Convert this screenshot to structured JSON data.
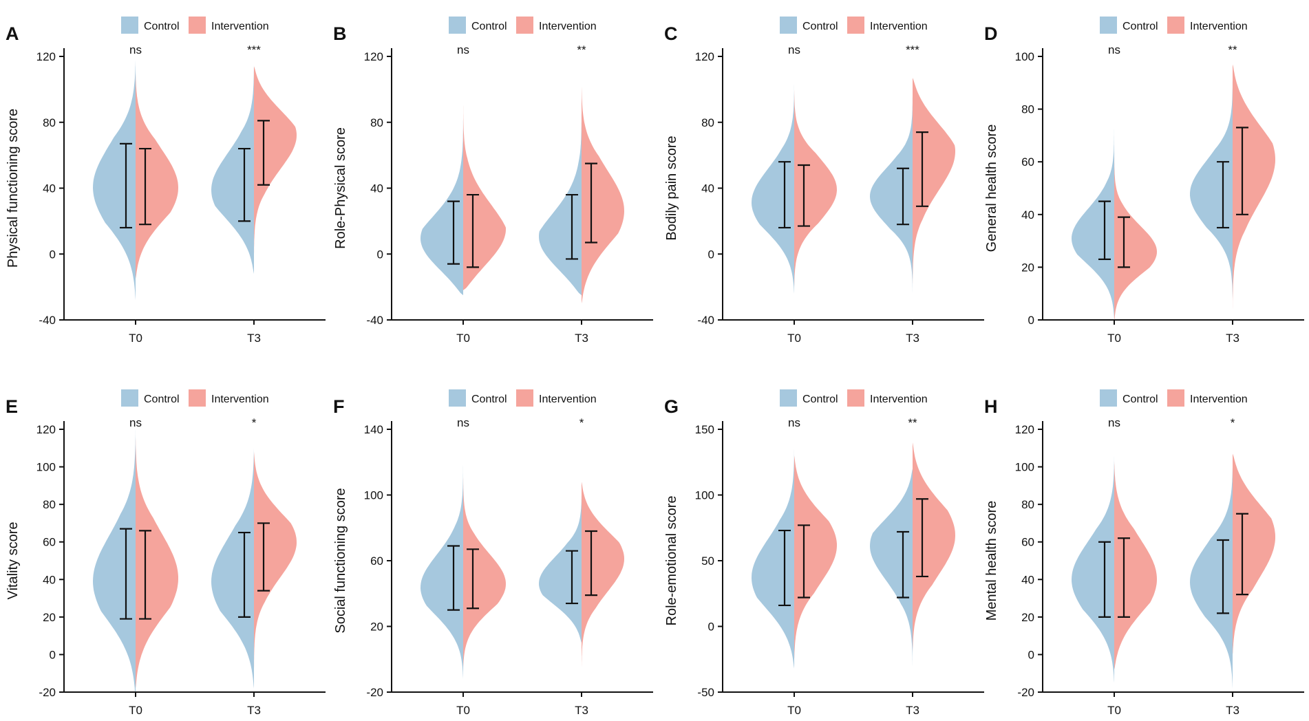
{
  "legend": [
    "Control",
    "Intervention"
  ],
  "colors": {
    "control": "#a6c8de",
    "intervention": "#f5a49c",
    "axis": "#111111",
    "errorbar": "#111111"
  },
  "chart_data": [
    {
      "panel": "A",
      "type": "violin",
      "ylabel": "Physical functioning score",
      "categories": [
        "T0",
        "T3"
      ],
      "ylim": [
        -40,
        120
      ],
      "yticks": [
        -40,
        0,
        40,
        80,
        120
      ],
      "significance": [
        "ns",
        "***"
      ],
      "series": [
        {
          "name": "Control",
          "groups": [
            {
              "min": -28,
              "max": 118,
              "peak": 40,
              "mean": 42,
              "sd_low": 16,
              "sd_high": 67
            },
            {
              "min": -12,
              "max": 116,
              "peak": 38,
              "mean": 42,
              "sd_low": 20,
              "sd_high": 64
            }
          ]
        },
        {
          "name": "Intervention",
          "groups": [
            {
              "min": -15,
              "max": 110,
              "peak": 40,
              "mean": 41,
              "sd_low": 18,
              "sd_high": 64
            },
            {
              "min": 0,
              "max": 114,
              "peak": 75,
              "mean": 61,
              "sd_low": 42,
              "sd_high": 81
            }
          ]
        }
      ]
    },
    {
      "panel": "B",
      "type": "violin",
      "ylabel": "Role-Physical score",
      "categories": [
        "T0",
        "T3"
      ],
      "ylim": [
        -40,
        120
      ],
      "yticks": [
        -40,
        0,
        40,
        80,
        120
      ],
      "significance": [
        "ns",
        "**"
      ],
      "series": [
        {
          "name": "Control",
          "groups": [
            {
              "min": -25,
              "max": 100,
              "peak": 0,
              "mean": 12,
              "sd_low": -6,
              "sd_high": 32
            },
            {
              "min": -25,
              "max": 95,
              "peak": 0,
              "mean": 16,
              "sd_low": -3,
              "sd_high": 36
            }
          ]
        },
        {
          "name": "Intervention",
          "groups": [
            {
              "min": -22,
              "max": 96,
              "peak": 5,
              "mean": 14,
              "sd_low": -8,
              "sd_high": 36
            },
            {
              "min": -30,
              "max": 102,
              "peak": 25,
              "mean": 30,
              "sd_low": 7,
              "sd_high": 55
            }
          ]
        }
      ]
    },
    {
      "panel": "C",
      "type": "violin",
      "ylabel": "Bodily pain score",
      "categories": [
        "T0",
        "T3"
      ],
      "ylim": [
        -40,
        120
      ],
      "yticks": [
        -40,
        0,
        40,
        80,
        120
      ],
      "significance": [
        "ns",
        "***"
      ],
      "series": [
        {
          "name": "Control",
          "groups": [
            {
              "min": -24,
              "max": 106,
              "peak": 30,
              "mean": 36,
              "sd_low": 16,
              "sd_high": 56
            },
            {
              "min": -25,
              "max": 100,
              "peak": 35,
              "mean": 35,
              "sd_low": 18,
              "sd_high": 52
            }
          ]
        },
        {
          "name": "Intervention",
          "groups": [
            {
              "min": -20,
              "max": 100,
              "peak": 40,
              "mean": 36,
              "sd_low": 17,
              "sd_high": 54
            },
            {
              "min": -20,
              "max": 107,
              "peak": 65,
              "mean": 52,
              "sd_low": 29,
              "sd_high": 74
            }
          ]
        }
      ]
    },
    {
      "panel": "D",
      "type": "violin",
      "ylabel": "General health score",
      "categories": [
        "T0",
        "T3"
      ],
      "ylim": [
        0,
        100
      ],
      "yticks": [
        0,
        20,
        40,
        60,
        80,
        100
      ],
      "significance": [
        "ns",
        "**"
      ],
      "series": [
        {
          "name": "Control",
          "groups": [
            {
              "min": 0,
              "max": 77,
              "peak": 30,
              "mean": 34,
              "sd_low": 23,
              "sd_high": 45
            },
            {
              "min": 8,
              "max": 92,
              "peak": 48,
              "mean": 47,
              "sd_low": 35,
              "sd_high": 60
            }
          ]
        },
        {
          "name": "Intervention",
          "groups": [
            {
              "min": -2,
              "max": 66,
              "peak": 25,
              "mean": 29,
              "sd_low": 20,
              "sd_high": 39
            },
            {
              "min": 4,
              "max": 97,
              "peak": 62,
              "mean": 57,
              "sd_low": 40,
              "sd_high": 73
            }
          ]
        }
      ]
    },
    {
      "panel": "E",
      "type": "violin",
      "ylabel": "Vitality score",
      "categories": [
        "T0",
        "T3"
      ],
      "ylim": [
        -20,
        120
      ],
      "yticks": [
        -20,
        0,
        20,
        40,
        60,
        80,
        100,
        120
      ],
      "significance": [
        "ns",
        "*"
      ],
      "series": [
        {
          "name": "Control",
          "groups": [
            {
              "min": -24,
              "max": 122,
              "peak": 38,
              "mean": 43,
              "sd_low": 19,
              "sd_high": 67
            },
            {
              "min": -18,
              "max": 110,
              "peak": 38,
              "mean": 42,
              "sd_low": 20,
              "sd_high": 65
            }
          ]
        },
        {
          "name": "Intervention",
          "groups": [
            {
              "min": -18,
              "max": 116,
              "peak": 40,
              "mean": 43,
              "sd_low": 19,
              "sd_high": 66
            },
            {
              "min": -10,
              "max": 108,
              "peak": 62,
              "mean": 52,
              "sd_low": 34,
              "sd_high": 70
            }
          ]
        }
      ]
    },
    {
      "panel": "F",
      "type": "violin",
      "ylabel": "Social functioning score",
      "categories": [
        "T0",
        "T3"
      ],
      "ylim": [
        -20,
        140
      ],
      "yticks": [
        -20,
        20,
        60,
        100,
        140
      ],
      "significance": [
        "ns",
        "*"
      ],
      "series": [
        {
          "name": "Control",
          "groups": [
            {
              "min": -12,
              "max": 126,
              "peak": 42,
              "mean": 50,
              "sd_low": 30,
              "sd_high": 69
            },
            {
              "min": 10,
              "max": 100,
              "peak": 45,
              "mean": 50,
              "sd_low": 34,
              "sd_high": 66
            }
          ]
        },
        {
          "name": "Intervention",
          "groups": [
            {
              "min": -5,
              "max": 115,
              "peak": 45,
              "mean": 49,
              "sd_low": 31,
              "sd_high": 67
            },
            {
              "min": -6,
              "max": 108,
              "peak": 62,
              "mean": 58,
              "sd_low": 39,
              "sd_high": 78
            }
          ]
        }
      ]
    },
    {
      "panel": "G",
      "type": "violin",
      "ylabel": "Role-emotional score",
      "categories": [
        "T0",
        "T3"
      ],
      "ylim": [
        -50,
        150
      ],
      "yticks": [
        -50,
        0,
        50,
        100,
        150
      ],
      "significance": [
        "ns",
        "**"
      ],
      "series": [
        {
          "name": "Control",
          "groups": [
            {
              "min": -32,
              "max": 135,
              "peak": 35,
              "mean": 45,
              "sd_low": 16,
              "sd_high": 73
            },
            {
              "min": -32,
              "max": 120,
              "peak": 65,
              "mean": 47,
              "sd_low": 22,
              "sd_high": 72
            }
          ]
        },
        {
          "name": "Intervention",
          "groups": [
            {
              "min": -25,
              "max": 130,
              "peak": 65,
              "mean": 49,
              "sd_low": 22,
              "sd_high": 77
            },
            {
              "min": -20,
              "max": 140,
              "peak": 70,
              "mean": 67,
              "sd_low": 38,
              "sd_high": 97
            }
          ]
        }
      ]
    },
    {
      "panel": "H",
      "type": "violin",
      "ylabel": "Mental health score",
      "categories": [
        "T0",
        "T3"
      ],
      "ylim": [
        -20,
        120
      ],
      "yticks": [
        -20,
        0,
        20,
        40,
        60,
        80,
        100,
        120
      ],
      "significance": [
        "ns",
        "*"
      ],
      "series": [
        {
          "name": "Control",
          "groups": [
            {
              "min": -15,
              "max": 106,
              "peak": 40,
              "mean": 40,
              "sd_low": 20,
              "sd_high": 60
            },
            {
              "min": -18,
              "max": 100,
              "peak": 38,
              "mean": 41,
              "sd_low": 22,
              "sd_high": 61
            }
          ]
        },
        {
          "name": "Intervention",
          "groups": [
            {
              "min": -8,
              "max": 103,
              "peak": 40,
              "mean": 41,
              "sd_low": 20,
              "sd_high": 62
            },
            {
              "min": 0,
              "max": 107,
              "peak": 65,
              "mean": 54,
              "sd_low": 32,
              "sd_high": 75
            }
          ]
        }
      ]
    }
  ]
}
